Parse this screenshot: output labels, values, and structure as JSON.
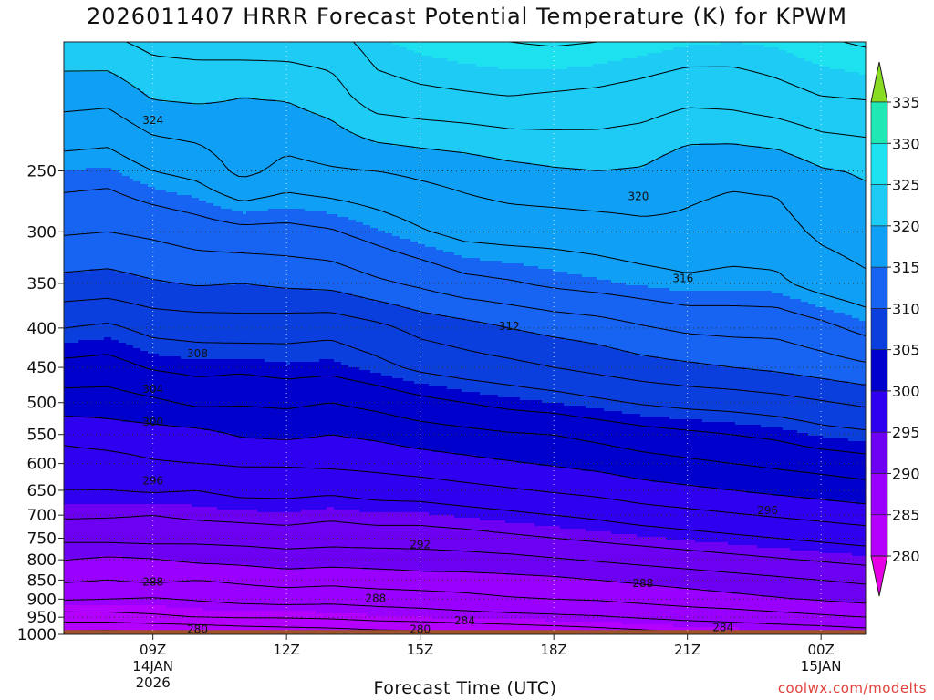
{
  "title": "2026011407 HRRR Forecast Potential Temperature (K) for KPWM",
  "xlabel": "Forecast Time (UTC)",
  "credit": "coolwx.com/modelts",
  "chart_data": {
    "type": "contour",
    "x": [
      7,
      8,
      9,
      10,
      11,
      12,
      13,
      14,
      15,
      16,
      17,
      18,
      19,
      20,
      21,
      22,
      23,
      24,
      25
    ],
    "x_range": [
      7,
      25
    ],
    "y_levels_hpa": [
      170,
      200,
      250,
      300,
      350,
      400,
      450,
      500,
      550,
      600,
      650,
      700,
      750,
      800,
      850,
      900,
      950,
      1000
    ],
    "y_range_hpa": [
      170,
      1000
    ],
    "y_scale": "log",
    "xticks": [
      {
        "value": 9,
        "label": "09Z",
        "date": "14JAN",
        "year": "2026"
      },
      {
        "value": 12,
        "label": "12Z",
        "date": "",
        "year": ""
      },
      {
        "value": 15,
        "label": "15Z",
        "date": "",
        "year": ""
      },
      {
        "value": 18,
        "label": "18Z",
        "date": "",
        "year": ""
      },
      {
        "value": 21,
        "label": "21Z",
        "date": "",
        "year": ""
      },
      {
        "value": 24,
        "label": "00Z",
        "date": "15JAN",
        "year": ""
      }
    ],
    "yticks": [
      "250",
      "300",
      "350",
      "400",
      "450",
      "500",
      "550",
      "600",
      "650",
      "700",
      "750",
      "800",
      "850",
      "900",
      "950",
      "1000"
    ],
    "colorbar": {
      "levels": [
        280,
        285,
        290,
        295,
        300,
        305,
        310,
        315,
        320,
        325,
        330,
        335
      ],
      "labels": [
        "280",
        "285",
        "290",
        "295",
        "300",
        "305",
        "310",
        "315",
        "320",
        "325",
        "330",
        "335"
      ],
      "colors": [
        "#b400ff",
        "#9900ff",
        "#6d00f2",
        "#2e00ef",
        "#0000cc",
        "#0a3fdd",
        "#1764f2",
        "#0fa0f5",
        "#1ecbf5",
        "#1de1ee",
        "#20e8b5",
        "#1fe673",
        "#44e020",
        "#a8e61b"
      ],
      "under_color": "#e600e6",
      "over_color": "#88dd22"
    },
    "terrain_color": "#a0522d",
    "contour_interval_k": 2,
    "theta_columns_k": [
      [
        321.4,
        318.8,
        315.0,
        312.2,
        309.4,
        306.0,
        303.4,
        301.0,
        298.6,
        297.0,
        296.0,
        294.3,
        292.5,
        290.0,
        288.3,
        286.2,
        283.1,
        279.2
      ],
      [
        321.6,
        318.6,
        314.8,
        312.0,
        309.2,
        305.6,
        303.2,
        301.0,
        299.0,
        297.2,
        296.0,
        294.2,
        292.6,
        289.6,
        288.0,
        286.0,
        283.2,
        279.0
      ],
      [
        322.6,
        320.2,
        316.0,
        312.4,
        309.8,
        306.6,
        304.2,
        301.6,
        299.2,
        297.8,
        296.2,
        294.0,
        292.8,
        289.8,
        288.4,
        285.8,
        283.6,
        279.2
      ],
      [
        322.8,
        320.4,
        316.6,
        313.0,
        310.2,
        306.8,
        304.6,
        302.4,
        299.4,
        298.0,
        296.0,
        294.4,
        292.6,
        290.4,
        288.0,
        286.2,
        284.0,
        279.4
      ],
      [
        323.0,
        320.0,
        318.6,
        313.4,
        310.0,
        307.0,
        304.4,
        302.2,
        300.2,
        298.2,
        296.6,
        294.6,
        292.8,
        290.6,
        288.4,
        286.6,
        284.2,
        280.0
      ],
      [
        323.0,
        320.2,
        317.4,
        313.4,
        310.4,
        306.8,
        304.8,
        302.4,
        300.4,
        298.2,
        296.6,
        294.8,
        293.0,
        291.0,
        288.8,
        286.8,
        284.2,
        280.4
      ],
      [
        323.2,
        321.0,
        317.8,
        313.8,
        310.6,
        306.6,
        304.6,
        302.0,
        300.0,
        298.4,
        296.4,
        294.4,
        292.8,
        290.8,
        288.6,
        286.6,
        284.4,
        280.6
      ],
      [
        324.8,
        323.2,
        318.0,
        314.8,
        311.6,
        307.4,
        305.4,
        302.6,
        300.4,
        298.6,
        296.8,
        294.8,
        293.0,
        290.8,
        289.0,
        286.8,
        284.8,
        281.0
      ],
      [
        325.4,
        323.6,
        318.4,
        315.8,
        312.4,
        308.6,
        306.4,
        303.4,
        301.0,
        299.0,
        297.0,
        294.8,
        293.0,
        291.0,
        289.2,
        287.0,
        285.0,
        281.2
      ],
      [
        325.8,
        323.8,
        318.8,
        316.6,
        313.4,
        309.2,
        307.0,
        304.0,
        301.4,
        299.4,
        297.4,
        295.2,
        293.2,
        291.2,
        289.2,
        287.4,
        285.2,
        281.6
      ],
      [
        326.0,
        324.0,
        319.4,
        316.8,
        313.8,
        310.0,
        307.4,
        304.6,
        301.8,
        299.8,
        297.8,
        295.6,
        293.6,
        291.4,
        289.4,
        287.8,
        285.4,
        282.0
      ],
      [
        326.2,
        323.8,
        319.8,
        316.8,
        314.4,
        310.6,
        308.0,
        305.0,
        302.0,
        300.2,
        298.2,
        296.0,
        294.0,
        291.8,
        289.6,
        288.0,
        285.6,
        282.4
      ],
      [
        326.0,
        323.6,
        320.0,
        317.0,
        314.8,
        311.0,
        308.6,
        305.6,
        302.6,
        300.6,
        298.6,
        296.4,
        294.4,
        292.2,
        290.0,
        288.2,
        285.8,
        282.8
      ],
      [
        325.6,
        323.2,
        319.8,
        317.4,
        315.2,
        311.8,
        309.2,
        306.2,
        303.2,
        301.2,
        299.2,
        297.0,
        294.8,
        292.6,
        290.4,
        288.6,
        286.2,
        283.2
      ],
      [
        325.2,
        322.6,
        318.6,
        317.6,
        315.6,
        312.4,
        309.6,
        306.6,
        303.6,
        301.6,
        299.6,
        297.4,
        295.2,
        293.0,
        290.8,
        289.0,
        286.6,
        283.6
      ],
      [
        325.0,
        322.8,
        318.4,
        317.2,
        315.4,
        312.6,
        310.0,
        306.8,
        304.0,
        302.0,
        300.0,
        297.8,
        295.6,
        293.4,
        291.2,
        289.4,
        286.8,
        284.0
      ],
      [
        325.2,
        323.4,
        318.6,
        317.2,
        315.6,
        312.6,
        310.4,
        307.2,
        304.4,
        302.4,
        300.4,
        298.2,
        296.0,
        293.8,
        291.6,
        289.8,
        287.2,
        284.2
      ],
      [
        325.8,
        324.0,
        319.8,
        318.4,
        316.8,
        313.4,
        311.0,
        307.8,
        305.2,
        302.8,
        300.8,
        298.6,
        296.4,
        294.2,
        292.0,
        290.2,
        287.6,
        284.4
      ],
      [
        326.2,
        324.2,
        320.2,
        319.0,
        317.6,
        314.6,
        311.6,
        308.4,
        305.6,
        303.2,
        301.2,
        299.0,
        296.8,
        294.6,
        292.4,
        290.6,
        288.0,
        284.8
      ]
    ],
    "contour_labels": [
      {
        "text": "324",
        "x": 9.0,
        "p": 215
      },
      {
        "text": "320",
        "x": 19.9,
        "p": 270
      },
      {
        "text": "316",
        "x": 20.9,
        "p": 345
      },
      {
        "text": "312",
        "x": 17.0,
        "p": 398
      },
      {
        "text": "308",
        "x": 10.0,
        "p": 432
      },
      {
        "text": "304",
        "x": 9.0,
        "p": 480
      },
      {
        "text": "300",
        "x": 9.0,
        "p": 530
      },
      {
        "text": "296",
        "x": 9.0,
        "p": 632
      },
      {
        "text": "296",
        "x": 22.8,
        "p": 690
      },
      {
        "text": "292",
        "x": 15.0,
        "p": 765
      },
      {
        "text": "288",
        "x": 9.0,
        "p": 855
      },
      {
        "text": "288",
        "x": 20.0,
        "p": 858
      },
      {
        "text": "288",
        "x": 14.0,
        "p": 898
      },
      {
        "text": "284",
        "x": 16.0,
        "p": 960
      },
      {
        "text": "284",
        "x": 21.8,
        "p": 980
      },
      {
        "text": "280",
        "x": 15.0,
        "p": 985
      },
      {
        "text": "280",
        "x": 10.0,
        "p": 985
      }
    ]
  }
}
